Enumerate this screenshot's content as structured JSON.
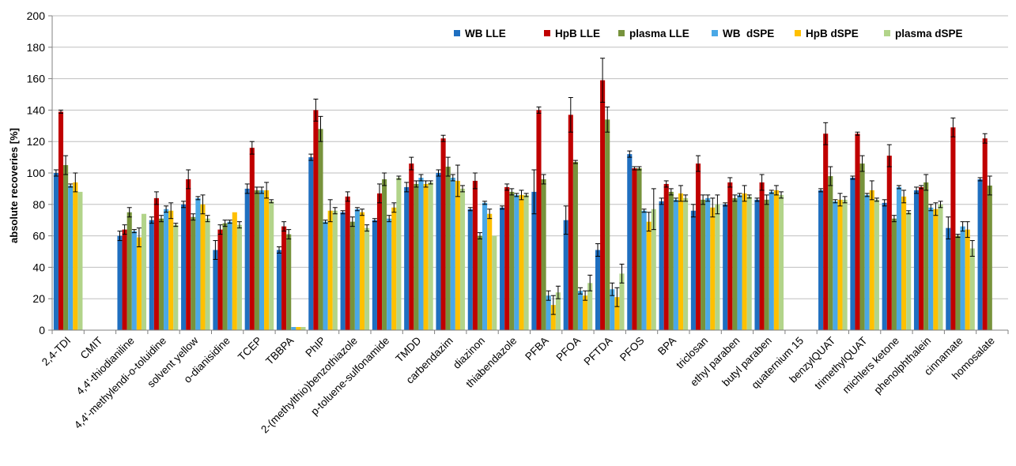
{
  "chart_data": {
    "type": "bar",
    "title": "",
    "xlabel": "",
    "ylabel": "absolute recoveries [%]",
    "ylim": [
      0,
      200
    ],
    "yticks": [
      0,
      20,
      40,
      60,
      80,
      100,
      120,
      140,
      160,
      180,
      200
    ],
    "grid": "horizontal",
    "legend_position": "top-right",
    "categories": [
      "2,4-TDI",
      "CMIT",
      "4,4'-thiodianiline",
      "4,4'-methylendi-o-toluidine",
      "solvent yellow",
      "o-dianisidine",
      "TCEP",
      "TBBPA",
      "PhIP",
      "2-(methylthio)benzothiazole",
      "p-toluene-sulfonamide",
      "TMDD",
      "carbendazim",
      "diazinon",
      "thiabendazole",
      "PFBA",
      "PFOA",
      "PFTDA",
      "PFOS",
      "BPA",
      "triclosan",
      "ethyl paraben",
      "butyl paraben",
      "quaternium 15",
      "benzylQUAT",
      "trimethylQUAT",
      "michlers ketone",
      "phenolphthalein",
      "cinnamate",
      "homosalate"
    ],
    "series": [
      {
        "name": "WB LLE",
        "color": "#1f6fc0",
        "values": [
          100,
          0,
          60,
          70,
          80,
          51,
          90,
          51,
          110,
          75,
          70,
          91,
          100,
          77,
          78,
          88,
          70,
          51,
          112,
          82,
          76,
          80,
          83,
          0,
          89,
          97,
          81,
          89,
          65,
          96
        ],
        "errors": [
          2,
          0,
          3,
          2,
          2,
          6,
          3,
          2,
          2,
          1,
          1,
          3,
          2,
          1,
          1,
          14,
          9,
          4,
          2,
          2,
          4,
          1,
          1,
          0,
          1,
          1,
          2,
          2,
          7,
          1
        ]
      },
      {
        "name": "HpB LLE",
        "color": "#c00000",
        "values": [
          139,
          0,
          64,
          84,
          96,
          64,
          116,
          66,
          140,
          85,
          87,
          106,
          122,
          95,
          91,
          140,
          137,
          159,
          103,
          93,
          106,
          94,
          94,
          0,
          125,
          125,
          111,
          91,
          129,
          122
        ],
        "errors": [
          1,
          0,
          3,
          4,
          6,
          3,
          4,
          3,
          7,
          3,
          6,
          4,
          2,
          5,
          2,
          2,
          11,
          14,
          1,
          2,
          5,
          3,
          5,
          0,
          7,
          1,
          7,
          1,
          6,
          3
        ]
      },
      {
        "name": "plasma LLE",
        "color": "#77933c",
        "values": [
          105,
          0,
          75,
          71,
          72,
          68,
          89,
          61,
          128,
          69,
          96,
          93,
          104,
          60,
          88,
          96,
          107,
          134,
          103,
          88,
          83,
          84,
          83,
          0,
          98,
          106,
          71,
          94,
          60,
          92
        ],
        "errors": [
          6,
          0,
          3,
          2,
          2,
          2,
          2,
          3,
          8,
          3,
          4,
          2,
          6,
          2,
          2,
          3,
          1,
          8,
          1,
          2,
          3,
          2,
          3,
          0,
          6,
          5,
          2,
          5,
          1,
          6
        ]
      },
      {
        "name": "WB  dSPE",
        "color": "#4aa8e6",
        "values": [
          92,
          0,
          63,
          77,
          84,
          69,
          89,
          2,
          69,
          77,
          71,
          97,
          97,
          81,
          86,
          22,
          25,
          26,
          76,
          83,
          84,
          86,
          88,
          0,
          82,
          86,
          91,
          78,
          66,
          0
        ],
        "errors": [
          1,
          0,
          1,
          2,
          1,
          1,
          2,
          0,
          1,
          1,
          2,
          2,
          2,
          1,
          1,
          3,
          2,
          4,
          1,
          1,
          2,
          1,
          1,
          0,
          1,
          1,
          1,
          2,
          3,
          0
        ]
      },
      {
        "name": "HpB dSPE",
        "color": "#ffc000",
        "values": [
          94,
          0,
          59,
          76,
          80,
          75,
          89,
          2,
          76,
          75,
          78,
          93,
          95,
          74,
          86,
          16,
          22,
          21,
          69,
          87,
          78,
          87,
          89,
          0,
          83,
          89,
          85,
          77,
          64,
          0
        ],
        "errors": [
          6,
          0,
          6,
          5,
          6,
          0,
          5,
          0,
          7,
          2,
          3,
          2,
          10,
          3,
          3,
          6,
          3,
          6,
          6,
          5,
          6,
          5,
          3,
          0,
          4,
          6,
          4,
          4,
          5,
          0
        ]
      },
      {
        "name": "plasma dSPE",
        "color": "#b2d48a",
        "values": [
          88,
          0,
          74,
          67,
          71,
          67,
          82,
          2,
          76,
          65,
          97,
          94,
          90,
          60,
          86,
          24,
          30,
          36,
          77,
          84,
          80,
          85,
          86,
          0,
          83,
          83,
          75,
          80,
          52,
          0
        ],
        "errors": [
          0,
          0,
          0,
          1,
          2,
          2,
          1,
          0,
          2,
          2,
          1,
          1,
          2,
          0,
          1,
          4,
          5,
          6,
          13,
          2,
          6,
          1,
          2,
          0,
          2,
          1,
          1,
          2,
          5,
          0
        ]
      }
    ]
  }
}
